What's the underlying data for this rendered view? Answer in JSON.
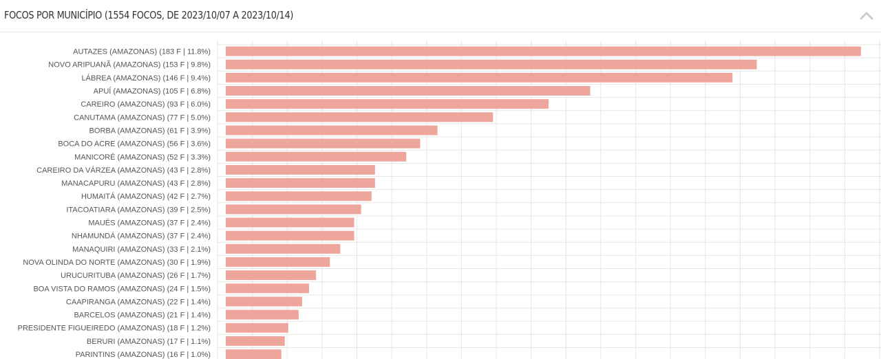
{
  "header": {
    "title": "FOCOS POR MUNICÍPIO (1554 FOCOS, DE 2023/10/07 A 2023/10/14)",
    "collapse_icon": "chevron-up-icon"
  },
  "colors": {
    "bar": "#eda59c",
    "grid": "#e6e6e6",
    "label": "#555555",
    "title": "#333333",
    "icon": "#cccccc"
  },
  "chart_data": {
    "type": "bar",
    "orientation": "horizontal",
    "categories": [
      "AUTAZES (AMAZONAS) (183 F | 11.8%)",
      "NOVO ARIPUANÃ (AMAZONAS) (153 F | 9.8%)",
      "LÁBREA (AMAZONAS) (146 F | 9.4%)",
      "APUÍ (AMAZONAS) (105 F | 6.8%)",
      "CAREIRO (AMAZONAS) (93 F | 6.0%)",
      "CANUTAMA (AMAZONAS) (77 F | 5.0%)",
      "BORBA (AMAZONAS) (61 F | 3.9%)",
      "BOCA DO ACRE (AMAZONAS) (56 F | 3.6%)",
      "MANICORÉ (AMAZONAS) (52 F | 3.3%)",
      "CAREIRO DA VÁRZEA (AMAZONAS) (43 F | 2.8%)",
      "MANACAPURU (AMAZONAS) (43 F | 2.8%)",
      "HUMAITÁ (AMAZONAS) (42 F | 2.7%)",
      "ITACOATIARA (AMAZONAS) (39 F | 2.5%)",
      "MAUÉS (AMAZONAS) (37 F | 2.4%)",
      "NHAMUNDÁ (AMAZONAS) (37 F | 2.4%)",
      "MANAQUIRI (AMAZONAS) (33 F | 2.1%)",
      "NOVA OLINDA DO NORTE (AMAZONAS) (30 F | 1.9%)",
      "URUCURITUBA (AMAZONAS) (26 F | 1.7%)",
      "BOA VISTA DO RAMOS (AMAZONAS) (24 F | 1.5%)",
      "CAAPIRANGA (AMAZONAS) (22 F | 1.4%)",
      "BARCELOS (AMAZONAS) (21 F | 1.4%)",
      "PRESIDENTE FIGUEIREDO (AMAZONAS) (18 F | 1.2%)",
      "BERURI (AMAZONAS) (17 F | 1.1%)",
      "PARINTINS (AMAZONAS) (16 F | 1.0%)"
    ],
    "values": [
      183,
      153,
      146,
      105,
      93,
      77,
      61,
      56,
      52,
      43,
      43,
      42,
      39,
      37,
      37,
      33,
      30,
      26,
      24,
      22,
      21,
      18,
      17,
      16
    ],
    "xlim": [
      0,
      187
    ],
    "grid": true,
    "legend": "none"
  }
}
